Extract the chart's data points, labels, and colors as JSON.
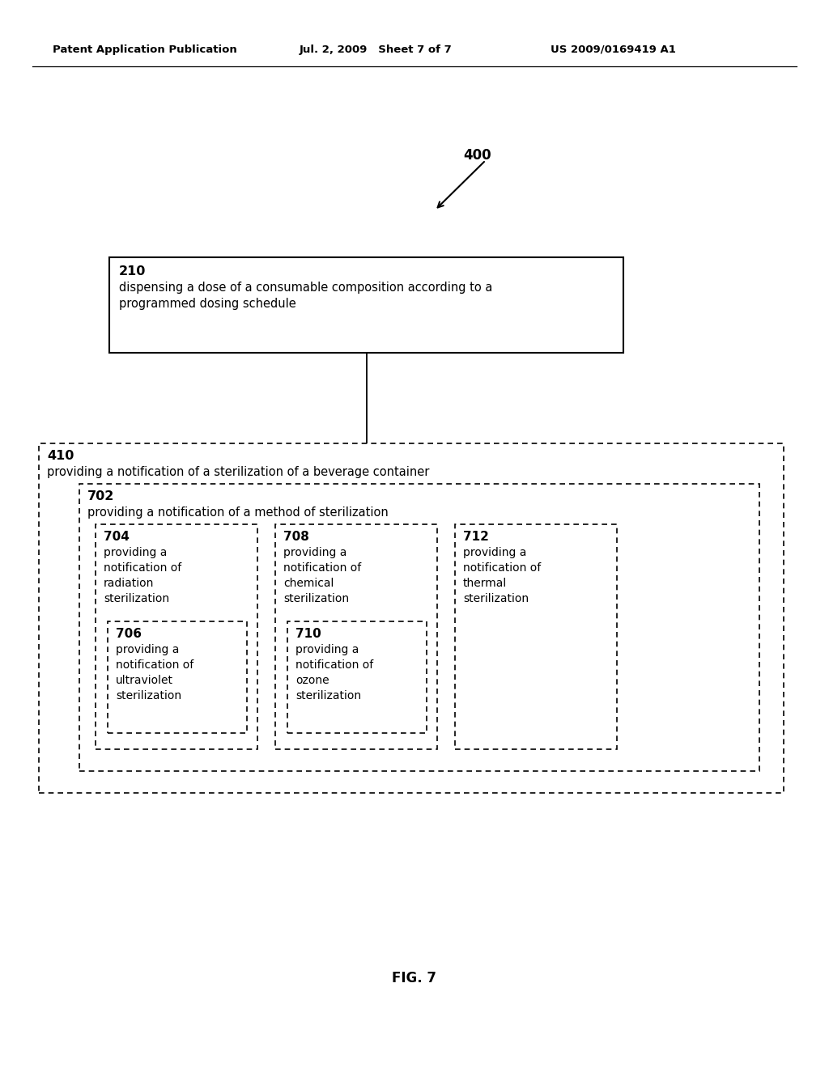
{
  "bg_color": "#ffffff",
  "header_left": "Patent Application Publication",
  "header_mid": "Jul. 2, 2009   Sheet 7 of 7",
  "header_right": "US 2009/0169419 A1",
  "arrow_label": "400",
  "box210_label": "210",
  "box210_text": "dispensing a dose of a consumable composition according to a\nprogrammed dosing schedule",
  "box410_label": "410",
  "box410_text": "providing a notification of a sterilization of a beverage container",
  "box702_label": "702",
  "box702_text": "providing a notification of a method of sterilization",
  "box704_label": "704",
  "box704_text": "providing a\nnotification of\nradiation\nsterilization",
  "box706_label": "706",
  "box706_text": "providing a\nnotification of\nultraviolet\nsterilization",
  "box708_label": "708",
  "box708_text": "providing a\nnotification of\nchemical\nsterilization",
  "box710_label": "710",
  "box710_text": "providing a\nnotification of\nozone\nsterilization",
  "box712_label": "712",
  "box712_text": "providing a\nnotification of\nthermal\nsterilization",
  "fig_label": "FIG. 7"
}
